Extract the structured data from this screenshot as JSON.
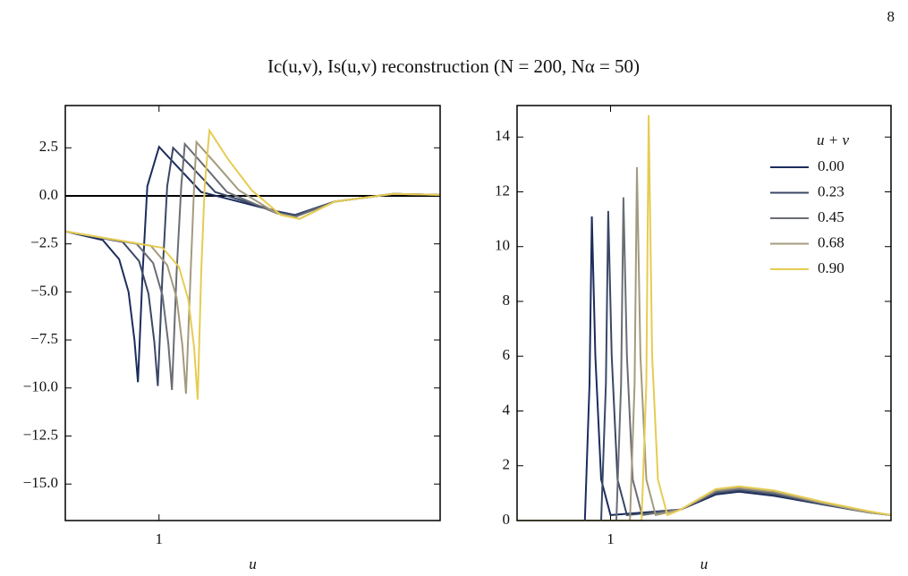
{
  "page_number": "8",
  "title": "Ic(u,v), Is(u,v) reconstruction (N = 200, Nα = 50)",
  "chart_data": [
    {
      "type": "line",
      "xlabel": "u",
      "xlim": [
        0.6,
        2.2
      ],
      "xticks": [
        1
      ],
      "ylim": [
        -16.9,
        4.7
      ],
      "yticks": [
        {
          "value": 2.5,
          "label": "2.5"
        },
        {
          "value": 0,
          "label": "0.0"
        },
        {
          "value": -2.5,
          "label": "−2.5"
        },
        {
          "value": -5,
          "label": "−5.0"
        },
        {
          "value": -7.5,
          "label": "−7.5"
        },
        {
          "value": -10,
          "label": "−10.0"
        },
        {
          "value": -12.5,
          "label": "−12.5"
        },
        {
          "value": -15,
          "label": "−15.0"
        }
      ],
      "hlines": [
        0
      ],
      "series": [
        {
          "name": "0.00",
          "color": "#1c2c5c",
          "x": [
            0.6,
            0.76,
            0.83,
            0.87,
            0.895,
            0.91,
            0.93,
            0.95,
            1.0,
            1.08,
            1.18,
            1.5,
            1.58,
            1.75,
            2.0,
            2.2
          ],
          "values": [
            -1.85,
            -2.3,
            -3.3,
            -5.0,
            -7.5,
            -9.7,
            -4.0,
            0.5,
            2.55,
            1.5,
            0.2,
            -0.8,
            -1.0,
            -0.3,
            0.1,
            0.05
          ]
        },
        {
          "name": "0.23",
          "color": "#3a4866",
          "x": [
            0.6,
            0.845,
            0.915,
            0.955,
            0.98,
            0.995,
            1.015,
            1.035,
            1.06,
            1.14,
            1.24,
            1.5,
            1.58,
            1.75,
            2.0,
            2.2
          ],
          "values": [
            -1.85,
            -2.4,
            -3.4,
            -5.1,
            -7.6,
            -9.9,
            -4.0,
            0.5,
            2.5,
            1.5,
            0.2,
            -0.8,
            -1.0,
            -0.3,
            0.1,
            0.05
          ]
        },
        {
          "name": "0.45",
          "color": "#6a6d74",
          "x": [
            0.6,
            0.905,
            0.975,
            1.015,
            1.04,
            1.055,
            1.075,
            1.095,
            1.11,
            1.19,
            1.29,
            1.5,
            1.58,
            1.75,
            2.0,
            2.2
          ],
          "values": [
            -1.85,
            -2.5,
            -3.5,
            -5.2,
            -7.7,
            -10.1,
            -4.0,
            0.5,
            2.7,
            1.6,
            0.2,
            -0.9,
            -1.1,
            -0.3,
            0.1,
            0.05
          ]
        },
        {
          "name": "0.68",
          "color": "#a39b7e",
          "x": [
            0.6,
            0.965,
            1.035,
            1.075,
            1.1,
            1.115,
            1.135,
            1.15,
            1.16,
            1.24,
            1.34,
            1.5,
            1.6,
            1.75,
            2.0,
            2.2
          ],
          "values": [
            -1.85,
            -2.6,
            -3.6,
            -5.3,
            -7.8,
            -10.3,
            -4.0,
            0.5,
            2.8,
            1.7,
            0.3,
            -0.9,
            -1.2,
            -0.3,
            0.1,
            0.05
          ]
        },
        {
          "name": "0.90",
          "color": "#e6cc52",
          "x": [
            0.6,
            1.015,
            1.085,
            1.125,
            1.15,
            1.165,
            1.18,
            1.195,
            1.215,
            1.295,
            1.395,
            1.52,
            1.6,
            1.75,
            2.0,
            2.2
          ],
          "values": [
            -1.85,
            -2.7,
            -3.7,
            -5.4,
            -7.9,
            -10.6,
            -4.0,
            0.5,
            3.4,
            1.9,
            0.3,
            -1.0,
            -1.2,
            -0.3,
            0.1,
            0.05
          ]
        }
      ]
    },
    {
      "type": "line",
      "xlabel": "u",
      "xlim": [
        0.6,
        2.2
      ],
      "xticks": [
        1
      ],
      "ylim": [
        0,
        15.15
      ],
      "yticks": [
        0,
        2,
        4,
        6,
        8,
        10,
        12,
        14
      ],
      "legend": "upper right",
      "legend_title": "u + v",
      "series": [
        {
          "name": "0.00",
          "color": "#1c2c5c",
          "x": [
            0.6,
            0.89,
            0.91,
            0.92,
            0.935,
            0.96,
            1.0,
            1.3,
            1.45,
            1.55,
            1.7,
            1.9,
            2.1,
            2.2
          ],
          "values": [
            0,
            0,
            5,
            11.1,
            6,
            1.5,
            0.2,
            0.4,
            0.95,
            1.05,
            0.9,
            0.6,
            0.3,
            0.2
          ]
        },
        {
          "name": "0.23",
          "color": "#3a4866",
          "x": [
            0.6,
            0.96,
            0.98,
            0.99,
            1.005,
            1.03,
            1.07,
            1.3,
            1.45,
            1.55,
            1.7,
            1.9,
            2.1,
            2.2
          ],
          "values": [
            0,
            0,
            5,
            11.3,
            6,
            1.5,
            0.2,
            0.4,
            1.0,
            1.1,
            0.95,
            0.6,
            0.3,
            0.2
          ]
        },
        {
          "name": "0.45",
          "color": "#6a6d74",
          "x": [
            0.6,
            1.025,
            1.045,
            1.055,
            1.07,
            1.095,
            1.135,
            1.3,
            1.45,
            1.55,
            1.7,
            1.9,
            2.1,
            2.2
          ],
          "values": [
            0,
            0,
            5,
            11.8,
            6,
            1.5,
            0.2,
            0.4,
            1.05,
            1.15,
            1.0,
            0.65,
            0.3,
            0.2
          ]
        },
        {
          "name": "0.68",
          "color": "#a39b7e",
          "x": [
            0.6,
            1.083,
            1.103,
            1.113,
            1.128,
            1.153,
            1.193,
            1.3,
            1.45,
            1.55,
            1.7,
            1.9,
            2.1,
            2.2
          ],
          "values": [
            0,
            0,
            5,
            12.9,
            6,
            1.5,
            0.2,
            0.4,
            1.1,
            1.2,
            1.05,
            0.65,
            0.3,
            0.2
          ]
        },
        {
          "name": "0.90",
          "color": "#e6cc52",
          "x": [
            0.6,
            1.133,
            1.153,
            1.163,
            1.178,
            1.203,
            1.243,
            1.3,
            1.45,
            1.55,
            1.7,
            1.9,
            2.1,
            2.2
          ],
          "values": [
            0,
            0,
            5,
            14.8,
            6,
            1.5,
            0.2,
            0.4,
            1.15,
            1.25,
            1.1,
            0.7,
            0.35,
            0.2
          ]
        }
      ]
    }
  ]
}
